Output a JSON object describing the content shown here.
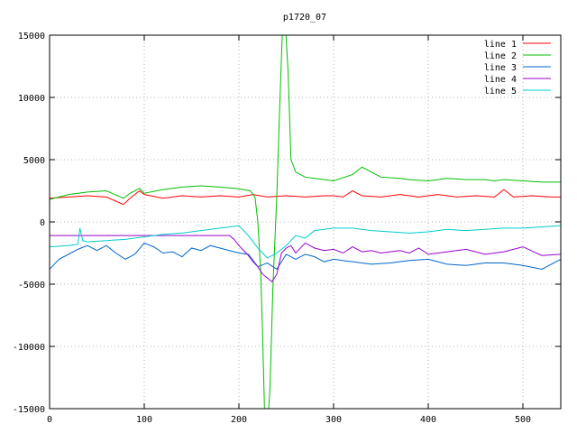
{
  "chart_data": {
    "type": "line",
    "title": "p1720_07",
    "xlabel": "",
    "ylabel": "",
    "xlim": [
      0,
      540
    ],
    "ylim": [
      -15000,
      15000
    ],
    "xticks": [
      0,
      100,
      200,
      300,
      400,
      500
    ],
    "yticks": [
      -15000,
      -10000,
      -5000,
      0,
      5000,
      10000,
      15000
    ],
    "grid": true,
    "legend_position": "top-right",
    "series": [
      {
        "name": "line 1",
        "color": "#ff0000",
        "x": [
          0,
          20,
          40,
          60,
          78,
          85,
          95,
          100,
          120,
          140,
          160,
          180,
          200,
          215,
          230,
          250,
          270,
          290,
          300,
          310,
          320,
          330,
          350,
          370,
          390,
          410,
          430,
          450,
          470,
          480,
          490,
          510,
          530,
          540
        ],
        "y": [
          1900,
          2000,
          2100,
          2000,
          1400,
          1900,
          2500,
          2200,
          1900,
          2100,
          2000,
          2100,
          2000,
          2200,
          2000,
          2100,
          2000,
          2100,
          2100,
          2000,
          2500,
          2100,
          2000,
          2200,
          2000,
          2200,
          2000,
          2100,
          2000,
          2600,
          2000,
          2100,
          2000,
          2000
        ]
      },
      {
        "name": "line 2",
        "color": "#00c000",
        "x": [
          0,
          20,
          40,
          60,
          78,
          85,
          95,
          100,
          120,
          140,
          160,
          180,
          195,
          205,
          212,
          217,
          220,
          223,
          225,
          227,
          230,
          233,
          236,
          240,
          243,
          246,
          249,
          252,
          255,
          260,
          270,
          280,
          300,
          320,
          330,
          350,
          370,
          380,
          400,
          420,
          440,
          460,
          470,
          480,
          500,
          520,
          540
        ],
        "y": [
          1800,
          2200,
          2400,
          2500,
          1900,
          2300,
          2700,
          2300,
          2600,
          2800,
          2900,
          2800,
          2700,
          2600,
          2500,
          2000,
          0,
          -4000,
          -9000,
          -15000,
          -17000,
          -13000,
          -5000,
          2000,
          9000,
          15500,
          16000,
          12000,
          5000,
          4000,
          3600,
          3500,
          3300,
          3800,
          4400,
          3600,
          3500,
          3400,
          3300,
          3500,
          3400,
          3400,
          3300,
          3400,
          3300,
          3200,
          3200
        ]
      },
      {
        "name": "line 3",
        "color": "#0066cc",
        "x": [
          0,
          10,
          20,
          30,
          40,
          50,
          60,
          70,
          80,
          90,
          100,
          110,
          120,
          130,
          140,
          150,
          160,
          170,
          180,
          190,
          200,
          210,
          220,
          230,
          240,
          250,
          260,
          270,
          280,
          290,
          300,
          320,
          340,
          360,
          380,
          400,
          420,
          440,
          460,
          480,
          500,
          520,
          540
        ],
        "y": [
          -3800,
          -3000,
          -2600,
          -2200,
          -1900,
          -2300,
          -1900,
          -2500,
          -3000,
          -2600,
          -1700,
          -2000,
          -2500,
          -2400,
          -2800,
          -2100,
          -2300,
          -1900,
          -2100,
          -2300,
          -2500,
          -2600,
          -3600,
          -3300,
          -3800,
          -2600,
          -3000,
          -2600,
          -2800,
          -3200,
          -3000,
          -3200,
          -3400,
          -3300,
          -3100,
          -3000,
          -3400,
          -3500,
          -3300,
          -3300,
          -3500,
          -3800,
          -3000
        ]
      },
      {
        "name": "line 4",
        "color": "#9900cc",
        "x": [
          0,
          100,
          190,
          195,
          200,
          205,
          210,
          215,
          220,
          225,
          230,
          235,
          240,
          245,
          250,
          255,
          260,
          270,
          280,
          290,
          300,
          310,
          320,
          330,
          340,
          350,
          360,
          370,
          380,
          390,
          400,
          420,
          440,
          460,
          480,
          500,
          520,
          540
        ],
        "y": [
          -1100,
          -1100,
          -1100,
          -1400,
          -1900,
          -2300,
          -2700,
          -3200,
          -3600,
          -4200,
          -4500,
          -4800,
          -4200,
          -2500,
          -2100,
          -1900,
          -2500,
          -1700,
          -2100,
          -2300,
          -2200,
          -2500,
          -2000,
          -2400,
          -2300,
          -2500,
          -2400,
          -2300,
          -2500,
          -2100,
          -2600,
          -2400,
          -2200,
          -2600,
          -2400,
          -2000,
          -2700,
          -2600
        ]
      },
      {
        "name": "line 5",
        "color": "#00cccc",
        "x": [
          0,
          20,
          30,
          32,
          35,
          40,
          60,
          80,
          100,
          120,
          140,
          160,
          180,
          200,
          210,
          220,
          230,
          240,
          250,
          260,
          270,
          280,
          300,
          320,
          340,
          360,
          380,
          400,
          420,
          440,
          460,
          480,
          500,
          520,
          540
        ],
        "y": [
          -2000,
          -1900,
          -1800,
          -500,
          -1500,
          -1600,
          -1500,
          -1400,
          -1200,
          -1000,
          -900,
          -700,
          -500,
          -300,
          -1100,
          -2100,
          -2900,
          -2500,
          -1900,
          -1100,
          -1300,
          -700,
          -500,
          -500,
          -700,
          -800,
          -900,
          -800,
          -600,
          -700,
          -600,
          -500,
          -500,
          -400,
          -300
        ]
      }
    ]
  }
}
